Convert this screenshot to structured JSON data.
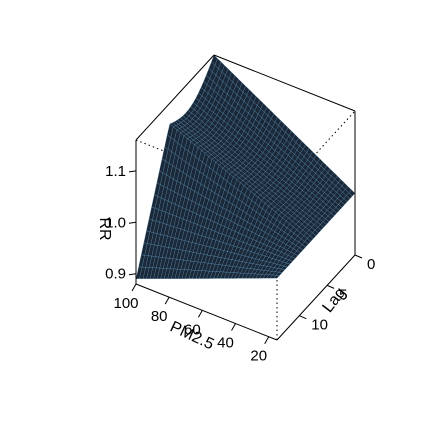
{
  "chart_data": {
    "type": "surface3d",
    "title": "",
    "xlabel": "PM2.5",
    "ylabel": "Lag",
    "zlabel": "RR",
    "x": {
      "name": "PM2.5",
      "ticks": [
        20,
        40,
        60,
        80,
        100
      ],
      "range": [
        15,
        100
      ]
    },
    "y": {
      "name": "Lag",
      "ticks": [
        0,
        5,
        10
      ],
      "range": [
        0,
        14
      ]
    },
    "z": {
      "name": "RR",
      "ticks": [
        0.9,
        1.0,
        1.1
      ],
      "range": [
        0.88,
        1.16
      ]
    },
    "surface_anchors": [
      {
        "pm25": 15,
        "lag": 0,
        "rr": 1.0
      },
      {
        "pm25": 15,
        "lag": 14,
        "rr": 1.0
      },
      {
        "pm25": 100,
        "lag": 0,
        "rr": 1.16
      },
      {
        "pm25": 100,
        "lag": 14,
        "rr": 0.89
      },
      {
        "pm25": 100,
        "lag": 8,
        "rr": 1.12
      }
    ],
    "fill_color": "#1b2838",
    "line_color": "#5aa0c8",
    "box": true,
    "grid": false
  }
}
